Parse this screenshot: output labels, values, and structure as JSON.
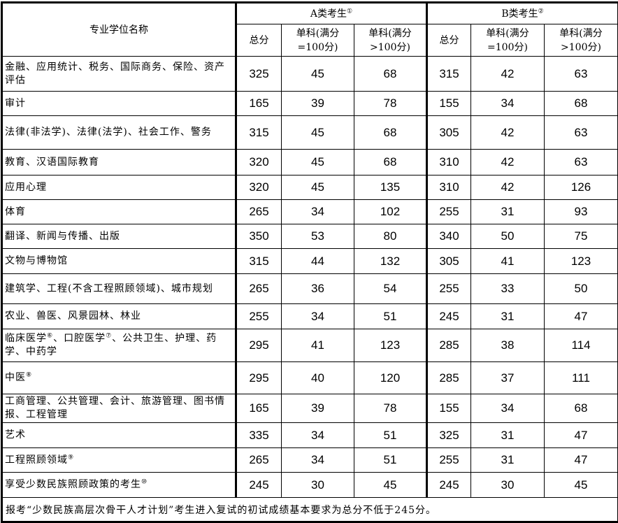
{
  "header": {
    "name_col": "专业学位名称",
    "group_a": {
      "label": "A类考生",
      "note": "①"
    },
    "group_b": {
      "label": "B类考生",
      "note": "②"
    },
    "sub_cols": [
      "总分",
      "单科(满分=100分)",
      "单科(满分>100分)"
    ],
    "sub_col_lines": [
      [
        "总分"
      ],
      [
        "单科(满分",
        "=100分)"
      ],
      [
        "单科(满分",
        ">100分)"
      ]
    ]
  },
  "rows": [
    {
      "name": "金融、应用统计、税务、国际商务、保险、资产评估",
      "note": "",
      "a": [
        "325",
        "45",
        "68"
      ],
      "b": [
        "315",
        "42",
        "63"
      ]
    },
    {
      "name": "审计",
      "note": "",
      "a": [
        "165",
        "39",
        "78"
      ],
      "b": [
        "155",
        "34",
        "68"
      ]
    },
    {
      "name": "法律(非法学)、法律(法学)、社会工作、警务",
      "note": "",
      "a": [
        "315",
        "45",
        "68"
      ],
      "b": [
        "305",
        "42",
        "63"
      ]
    },
    {
      "name": "教育、汉语国际教育",
      "note": "",
      "a": [
        "320",
        "45",
        "68"
      ],
      "b": [
        "310",
        "42",
        "63"
      ]
    },
    {
      "name": "应用心理",
      "note": "",
      "a": [
        "320",
        "45",
        "135"
      ],
      "b": [
        "310",
        "42",
        "126"
      ]
    },
    {
      "name": "体育",
      "note": "",
      "a": [
        "265",
        "34",
        "102"
      ],
      "b": [
        "255",
        "31",
        "93"
      ]
    },
    {
      "name": "翻译、新闻与传播、出版",
      "note": "",
      "a": [
        "350",
        "53",
        "80"
      ],
      "b": [
        "340",
        "50",
        "75"
      ]
    },
    {
      "name": "文物与博物馆",
      "note": "",
      "a": [
        "315",
        "44",
        "132"
      ],
      "b": [
        "305",
        "41",
        "123"
      ]
    },
    {
      "name": "建筑学、工程(不含工程照顾领域)、城市规划",
      "note": "",
      "a": [
        "265",
        "36",
        "54"
      ],
      "b": [
        "255",
        "33",
        "50"
      ]
    },
    {
      "name": "农业、兽医、风景园林、林业",
      "note": "",
      "a": [
        "255",
        "34",
        "51"
      ],
      "b": [
        "245",
        "31",
        "47"
      ]
    },
    {
      "name_parts": [
        "临床医学",
        "⑥",
        "、口腔医学",
        "⑦",
        "、公共卫生、护理、药学、中药学"
      ],
      "a": [
        "295",
        "41",
        "123"
      ],
      "b": [
        "285",
        "38",
        "114"
      ]
    },
    {
      "name": "中医",
      "note": "⑧",
      "a": [
        "295",
        "40",
        "120"
      ],
      "b": [
        "285",
        "37",
        "111"
      ]
    },
    {
      "name": "工商管理、公共管理、会计、旅游管理、图书情报、工程管理",
      "note": "",
      "a": [
        "165",
        "39",
        "78"
      ],
      "b": [
        "155",
        "34",
        "68"
      ]
    },
    {
      "name": "艺术",
      "note": "",
      "a": [
        "335",
        "34",
        "51"
      ],
      "b": [
        "325",
        "31",
        "47"
      ]
    },
    {
      "name": "工程照顾领域",
      "note": "⑨",
      "a": [
        "265",
        "34",
        "51"
      ],
      "b": [
        "255",
        "31",
        "47"
      ]
    },
    {
      "name": "享受少数民族照顾政策的考生",
      "note": "⑩",
      "a": [
        "245",
        "30",
        "45"
      ],
      "b": [
        "245",
        "30",
        "45"
      ]
    }
  ],
  "footer": "报考“少数民族高层次骨干人才计划”考生进入复试的初试成绩基本要求为总分不低于245分。"
}
